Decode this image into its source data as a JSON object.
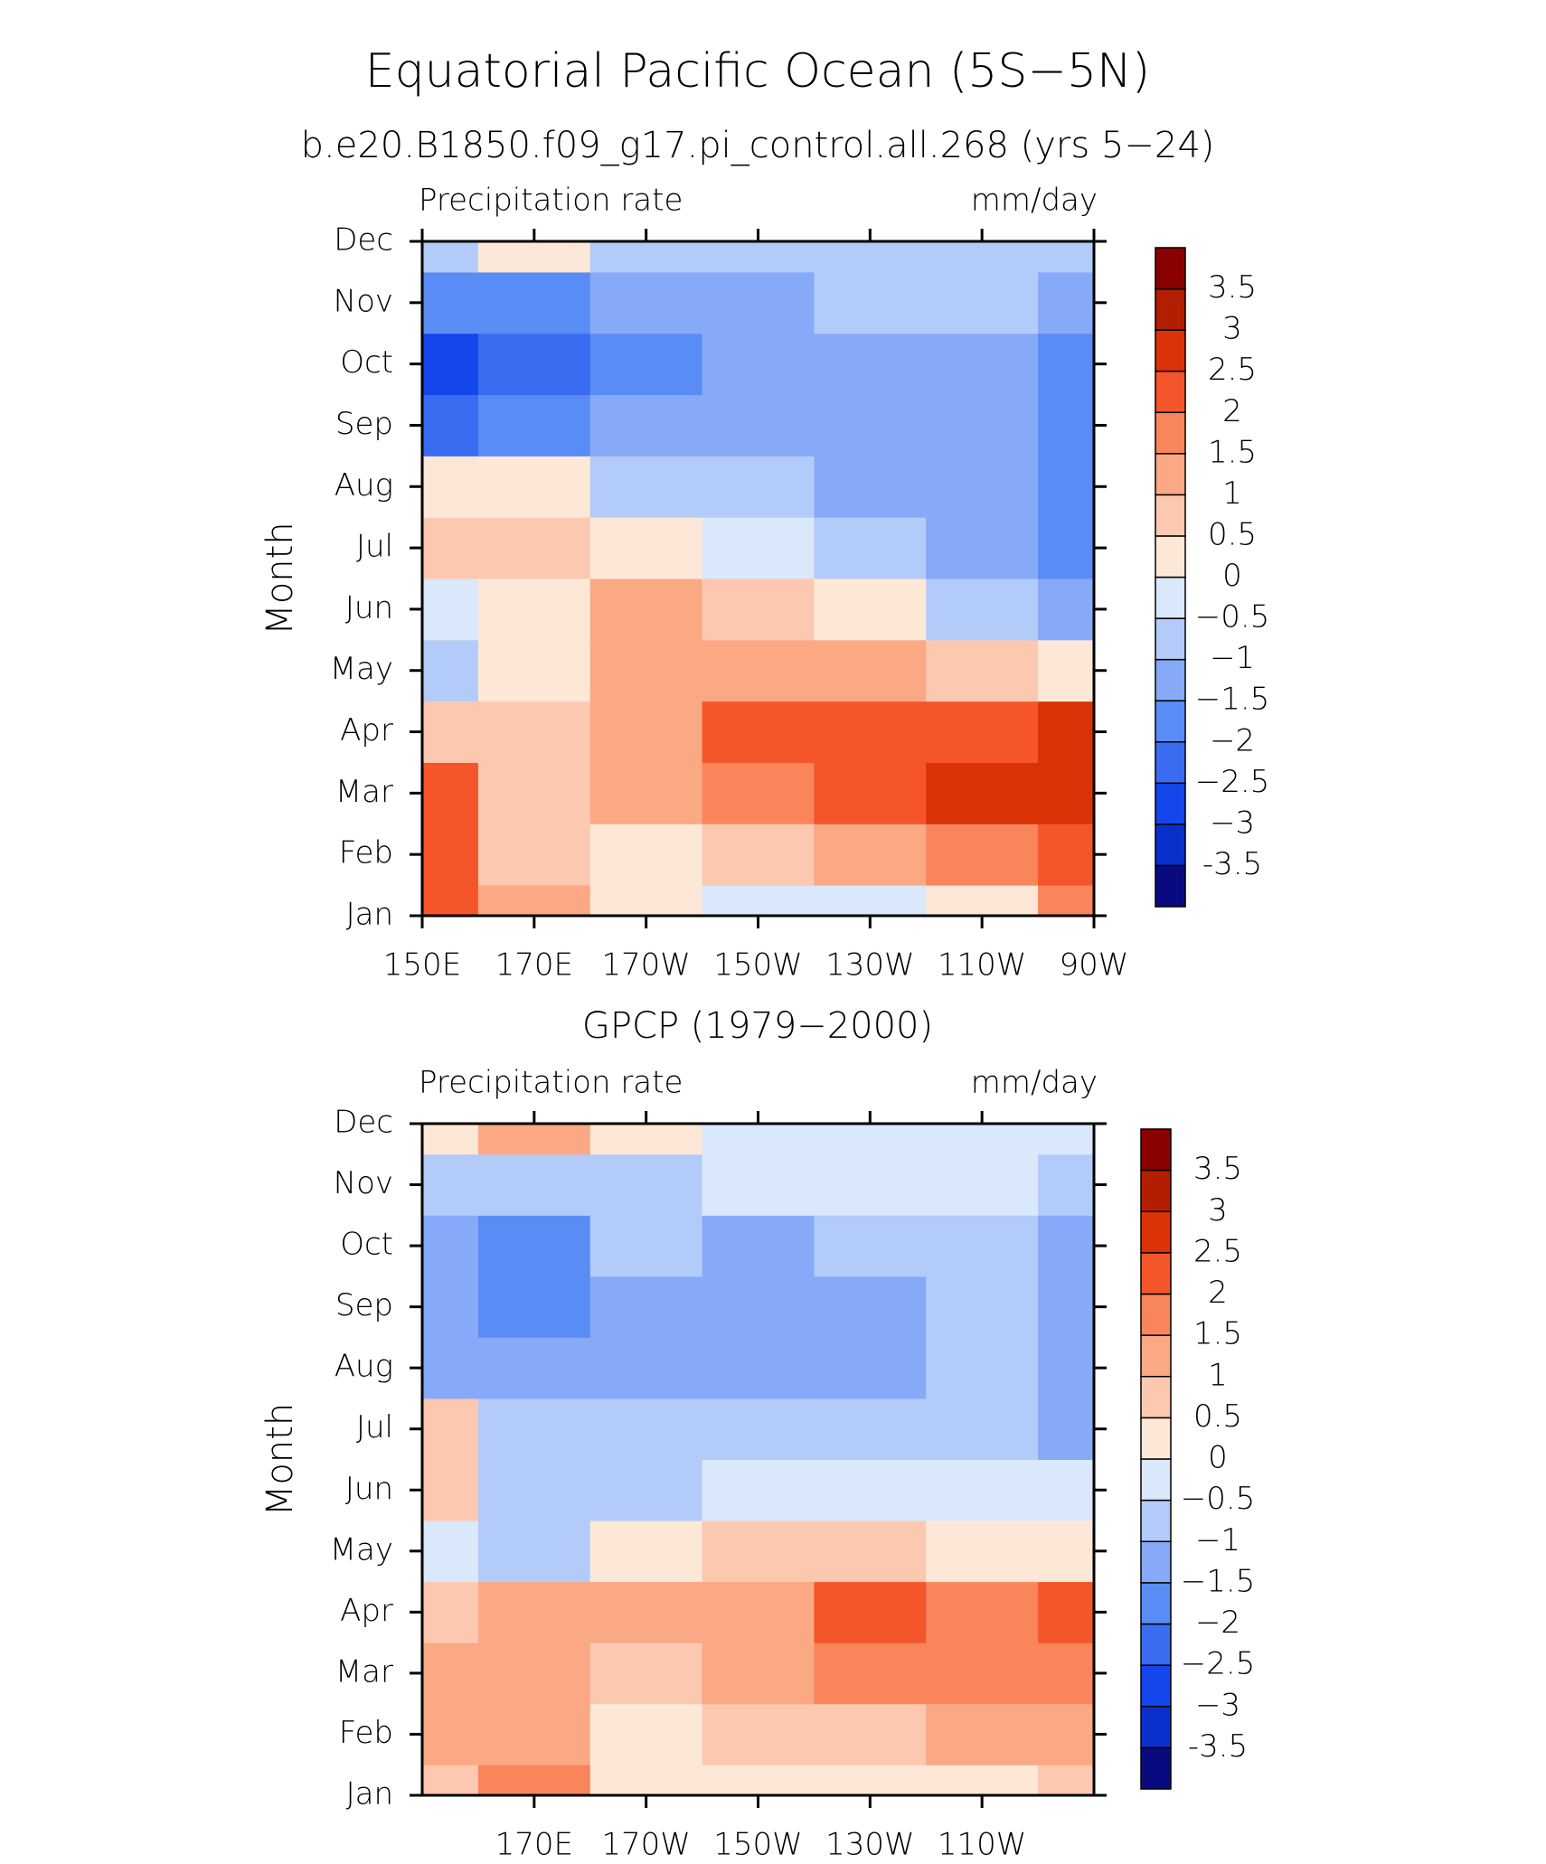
{
  "chart_data": [
    {
      "type": "contour",
      "title": "Equatorial Pacific Ocean (5S−5N)",
      "subtitle": "b.e20.B1850.f09_g17.pi_control.all.268 (yrs 5−24)",
      "left_label": "Precipitation rate",
      "right_label": "mm/day",
      "ylabel": "Month",
      "categories": [
        "Jan",
        "Feb",
        "Mar",
        "Apr",
        "May",
        "Jun",
        "Jul",
        "Aug",
        "Sep",
        "Oct",
        "Nov",
        "Dec"
      ],
      "x": [
        150,
        170,
        190,
        210,
        230,
        250,
        270
      ],
      "xlim": [
        150,
        270
      ],
      "xticks": [
        {
          "value": 150,
          "label": "150E"
        },
        {
          "value": 170,
          "label": "170E"
        },
        {
          "value": 190,
          "label": "170W"
        },
        {
          "value": 210,
          "label": "150W"
        },
        {
          "value": 230,
          "label": "130W"
        },
        {
          "value": 250,
          "label": "110W"
        },
        {
          "value": 270,
          "label": "90W"
        }
      ],
      "values": [
        [
          2.0,
          1.2,
          0.3,
          -0.2,
          -0.3,
          0.3,
          1.8
        ],
        [
          2.0,
          0.8,
          0.3,
          0.5,
          1.0,
          1.8,
          2.2
        ],
        [
          2.2,
          0.8,
          1.2,
          1.8,
          2.3,
          2.8,
          2.8
        ],
        [
          0.8,
          0.7,
          1.3,
          2.2,
          2.3,
          2.3,
          2.5
        ],
        [
          -0.7,
          0.3,
          1.3,
          1.3,
          1.0,
          0.5,
          0.3
        ],
        [
          -0.3,
          0.3,
          1.2,
          0.6,
          0.0,
          -0.8,
          -1.2
        ],
        [
          0.7,
          0.8,
          0.2,
          -0.3,
          -0.8,
          -1.3,
          -1.6
        ],
        [
          0.3,
          0.0,
          -0.7,
          -0.9,
          -1.2,
          -1.5,
          -1.7
        ],
        [
          -2.3,
          -1.9,
          -1.4,
          -1.3,
          -1.4,
          -1.5,
          -1.8
        ],
        [
          -2.7,
          -2.3,
          -1.6,
          -1.3,
          -1.3,
          -1.3,
          -1.6
        ],
        [
          -2.0,
          -1.8,
          -1.3,
          -1.2,
          -0.9,
          -0.8,
          -1.2
        ],
        [
          -0.7,
          0.2,
          -0.7,
          -0.7,
          -0.7,
          -0.7,
          -0.7
        ]
      ],
      "levels": [
        -3.5,
        {
          "value": -3,
          "label": "−3"
        },
        {
          "value": -2.5,
          "label": "−2.5"
        },
        {
          "value": -2,
          "label": "−2"
        },
        {
          "value": -1.5,
          "label": "−1.5"
        },
        {
          "value": -1,
          "label": "−1"
        },
        {
          "value": -0.5,
          "label": "−0.5"
        },
        0,
        0.5,
        1,
        1.5,
        2,
        2.5,
        3,
        3.5
      ],
      "colors": [
        "#0a0a80",
        "#0a30cc",
        "#1446eb",
        "#3a6cf2",
        "#5a8cf5",
        "#86aaf8",
        "#b3cbf9",
        "#d9e8fb",
        "#fde8d8",
        "#fcc8b0",
        "#fba884",
        "#f9855a",
        "#f5552a",
        "#dc3208",
        "#b41e00",
        "#8b0000"
      ]
    },
    {
      "type": "contour",
      "title": "GPCP (1979−2000)",
      "left_label": "Precipitation rate",
      "right_label": "mm/day",
      "ylabel": "Month",
      "categories": [
        "Jan",
        "Feb",
        "Mar",
        "Apr",
        "May",
        "Jun",
        "Jul",
        "Aug",
        "Sep",
        "Oct",
        "Nov",
        "Dec"
      ],
      "x": [
        150,
        170,
        190,
        210,
        230,
        250,
        270
      ],
      "xlim": [
        150,
        270
      ],
      "xticks": [
        {
          "value": 170,
          "label": "170E"
        },
        {
          "value": 190,
          "label": "170W"
        },
        {
          "value": 210,
          "label": "150W"
        },
        {
          "value": 230,
          "label": "130W"
        },
        {
          "value": 250,
          "label": "110W"
        }
      ],
      "values": [
        [
          0.7,
          1.7,
          0.3,
          0.3,
          0.3,
          0.3,
          0.5
        ],
        [
          1.3,
          1.2,
          0.4,
          0.8,
          0.8,
          1.2,
          1.3
        ],
        [
          1.3,
          1.3,
          0.6,
          1.2,
          1.8,
          1.7,
          1.8
        ],
        [
          0.6,
          1.2,
          1.0,
          1.3,
          2.0,
          1.7,
          2.0
        ],
        [
          -0.3,
          -0.7,
          0.3,
          0.6,
          0.6,
          0.3,
          0.3
        ],
        [
          0.6,
          -0.7,
          -0.6,
          -0.3,
          -0.3,
          -0.3,
          -0.3
        ],
        [
          0.5,
          -0.7,
          -0.7,
          -0.7,
          -0.7,
          -0.7,
          -1.2
        ],
        [
          -1.2,
          -1.2,
          -1.2,
          -1.2,
          -1.2,
          -0.7,
          -1.2
        ],
        [
          -1.3,
          -1.7,
          -1.3,
          -1.2,
          -1.2,
          -0.8,
          -1.3
        ],
        [
          -1.3,
          -1.6,
          -1.0,
          -1.1,
          -0.7,
          -0.7,
          -1.3
        ],
        [
          -0.8,
          -0.7,
          -0.7,
          -0.3,
          -0.5,
          -0.5,
          -0.8
        ],
        [
          0.3,
          1.3,
          0.3,
          -0.3,
          -0.3,
          -0.3,
          -0.3
        ]
      ],
      "levels": [
        -3.5,
        {
          "value": -3,
          "label": "−3"
        },
        {
          "value": -2.5,
          "label": "−2.5"
        },
        {
          "value": -2,
          "label": "−2"
        },
        {
          "value": -1.5,
          "label": "−1.5"
        },
        {
          "value": -1,
          "label": "−1"
        },
        {
          "value": -0.5,
          "label": "−0.5"
        },
        0,
        0.5,
        1,
        1.5,
        2,
        2.5,
        3,
        3.5
      ],
      "colors": [
        "#0a0a80",
        "#0a30cc",
        "#1446eb",
        "#3a6cf2",
        "#5a8cf5",
        "#86aaf8",
        "#b3cbf9",
        "#d9e8fb",
        "#fde8d8",
        "#fcc8b0",
        "#fba884",
        "#f9855a",
        "#f5552a",
        "#dc3208",
        "#b41e00",
        "#8b0000"
      ]
    }
  ]
}
